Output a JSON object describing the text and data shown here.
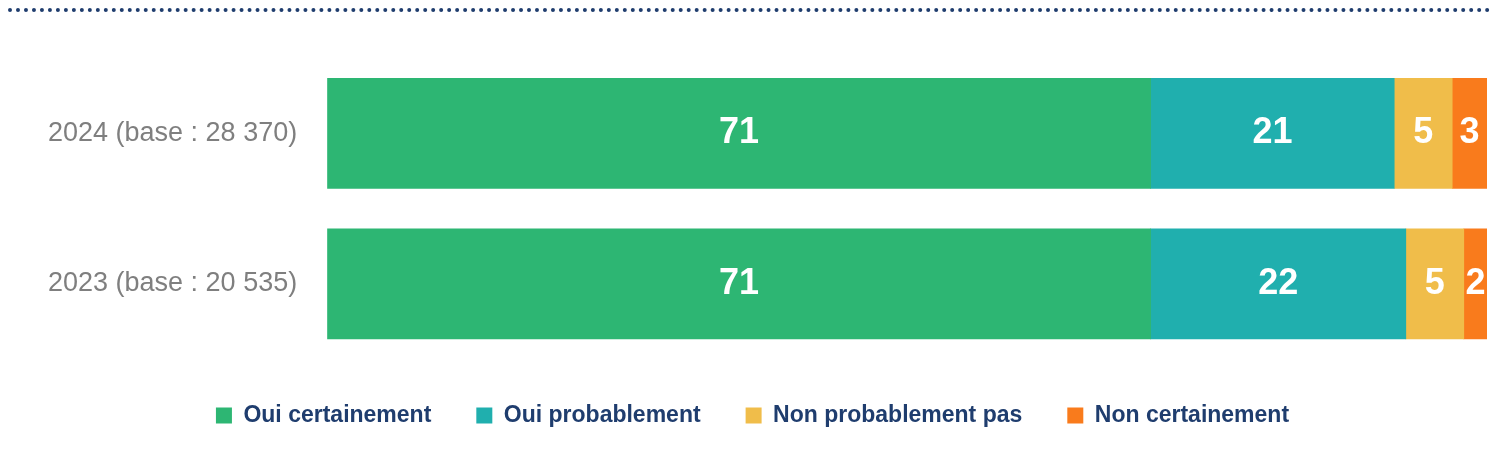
{
  "chart_data": {
    "type": "bar",
    "orientation": "horizontal",
    "stacked": true,
    "categories": [
      "2024 (base : 28 370)",
      "2023 (base : 20 535)"
    ],
    "series": [
      {
        "name": "Oui certainement",
        "color": "#2db673",
        "values": [
          71,
          71
        ]
      },
      {
        "name": "Oui probablement",
        "color": "#20afae",
        "values": [
          21,
          22
        ]
      },
      {
        "name": "Non probablement pas",
        "color": "#f0bd4a",
        "values": [
          5,
          5
        ]
      },
      {
        "name": "Non certainement",
        "color": "#f97b1c",
        "values": [
          3,
          2
        ]
      }
    ],
    "xlim": [
      0,
      100
    ],
    "data_labels": true,
    "legend": "bottom",
    "grid": false
  }
}
